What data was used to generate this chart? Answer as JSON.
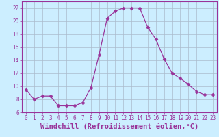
{
  "x": [
    0,
    1,
    2,
    3,
    4,
    5,
    6,
    7,
    8,
    9,
    10,
    11,
    12,
    13,
    14,
    15,
    16,
    17,
    18,
    19,
    20,
    21,
    22,
    23
  ],
  "y": [
    9.5,
    8.0,
    8.5,
    8.5,
    7.0,
    7.0,
    7.0,
    7.5,
    9.8,
    14.8,
    20.4,
    21.5,
    22.0,
    22.0,
    22.0,
    19.0,
    17.2,
    14.2,
    12.0,
    11.2,
    10.3,
    9.2,
    8.7,
    8.7
  ],
  "line_color": "#993399",
  "marker": "D",
  "marker_size": 2.5,
  "bg_color": "#cceeff",
  "grid_color": "#aabbcc",
  "xlabel": "Windchill (Refroidissement éolien,°C)",
  "ylim": [
    6,
    23
  ],
  "xlim": [
    -0.5,
    23.5
  ],
  "yticks": [
    6,
    8,
    10,
    12,
    14,
    16,
    18,
    20,
    22
  ],
  "xticks": [
    0,
    1,
    2,
    3,
    4,
    5,
    6,
    7,
    8,
    9,
    10,
    11,
    12,
    13,
    14,
    15,
    16,
    17,
    18,
    19,
    20,
    21,
    22,
    23
  ],
  "tick_fontsize": 5.5,
  "xlabel_fontsize": 7.5,
  "line_color2": "#993399",
  "tick_color": "#993399",
  "spine_color": "#993399"
}
